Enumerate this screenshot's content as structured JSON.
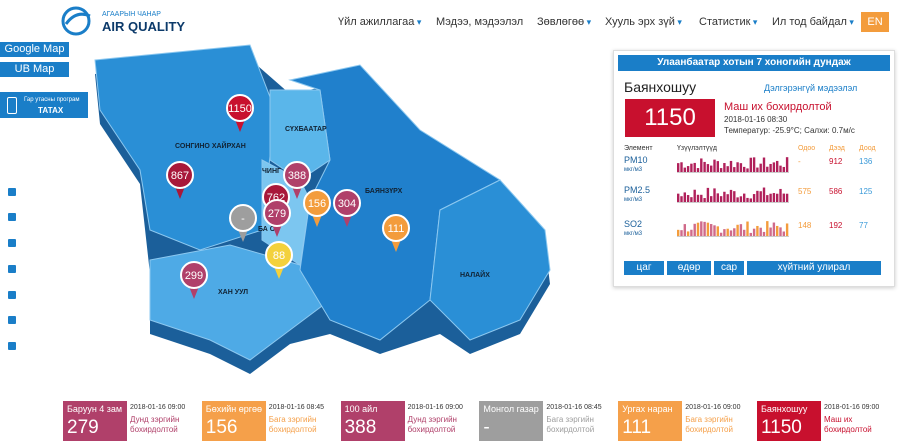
{
  "header": {
    "logo_top": "АГААРЫН ЧАНАР",
    "logo_main": "AIR QUALITY",
    "nav": [
      "Үйл ажиллагаа",
      "Мэдээ, мэдээлэл",
      "Зөвлөгөө",
      "Хууль эрх зүй",
      "Статистик",
      "Ил тод байдал"
    ],
    "lang": "EN"
  },
  "sidebar": {
    "buttons": [
      "Google Map",
      "UB Map"
    ],
    "app": {
      "line1": "Гар утасны програм",
      "line2": "ТАТАХ"
    }
  },
  "map": {
    "districts": [
      "СОНГИНО ХАЙРХАН",
      "СҮХБААТАР",
      "ЧИНГ",
      "БАЯНЗҮРХ",
      "БА    ОЛ",
      "НАЛАЙХ",
      "ХАН УУЛ"
    ],
    "pins": [
      {
        "value": "1150",
        "color": "#c8102e"
      },
      {
        "value": "867",
        "color": "#a8183a"
      },
      {
        "value": "388",
        "color": "#b0406a"
      },
      {
        "value": "762",
        "color": "#a8183a"
      },
      {
        "value": "279",
        "color": "#b0406a"
      },
      {
        "value": "-",
        "color": "#9e9e9e"
      },
      {
        "value": "156",
        "color": "#f39c3c"
      },
      {
        "value": "304",
        "color": "#b0406a"
      },
      {
        "value": "111",
        "color": "#f39c3c"
      },
      {
        "value": "88",
        "color": "#f3d13c"
      },
      {
        "value": "299",
        "color": "#b0406a"
      }
    ]
  },
  "station_panel": {
    "banner": "Улаанбаатар хотын 7 хоногийн дундаж",
    "station": "Баянхошуу",
    "details_link": "Дэлгэрэнгүй мэдээлэл",
    "aqi": "1150",
    "status": "Маш их бохирдолтой",
    "time": "2018-01-16 08:30",
    "weather": "Температур: -25.9°C; Салхи: 0.7м/с",
    "columns": [
      "Элемент",
      "Үзүүлэлтүүд",
      "Одоо",
      "Дээд",
      "Доод"
    ],
    "rows": [
      {
        "element": "PM10",
        "unit": "мкг/м3",
        "now": "-",
        "max": "912",
        "min": "136"
      },
      {
        "element": "PM2.5",
        "unit": "мкг/м3",
        "now": "575",
        "max": "586",
        "min": "125"
      },
      {
        "element": "SO2",
        "unit": "мкг/м3",
        "now": "148",
        "max": "192",
        "min": "77"
      }
    ],
    "tabs": [
      "цаг",
      "өдөр",
      "сар",
      "хүйтний улирал"
    ]
  },
  "cards": [
    {
      "name": "Баруун 4 зам",
      "time": "2018-01-16 09:00",
      "value": "279",
      "status": "Дунд зэргийн бохирдолтой",
      "color": "#b0406a"
    },
    {
      "name": "Бөхийн өргөө",
      "time": "2018-01-16 08:45",
      "value": "156",
      "status": "Бага зэргийн бохирдолтой",
      "color": "#f5a04a"
    },
    {
      "name": "100 айл",
      "time": "2018-01-16 09:00",
      "value": "388",
      "status": "Дунд зэргийн бохирдолтой",
      "color": "#b0406a"
    },
    {
      "name": "Монгол газар",
      "time": "2018-01-16 08:45",
      "value": "-",
      "status": "Бага зэргийн бохирдолтой",
      "color": "#9e9e9e"
    },
    {
      "name": "Ургах наран",
      "time": "2018-01-16 09:00",
      "value": "111",
      "status": "Бага зэргийн бохирдолтой",
      "color": "#f5a04a"
    },
    {
      "name": "Баянхошуу",
      "time": "2018-01-16 09:00",
      "value": "1150",
      "status": "Маш их бохирдолтой",
      "color": "#c8102e"
    }
  ]
}
